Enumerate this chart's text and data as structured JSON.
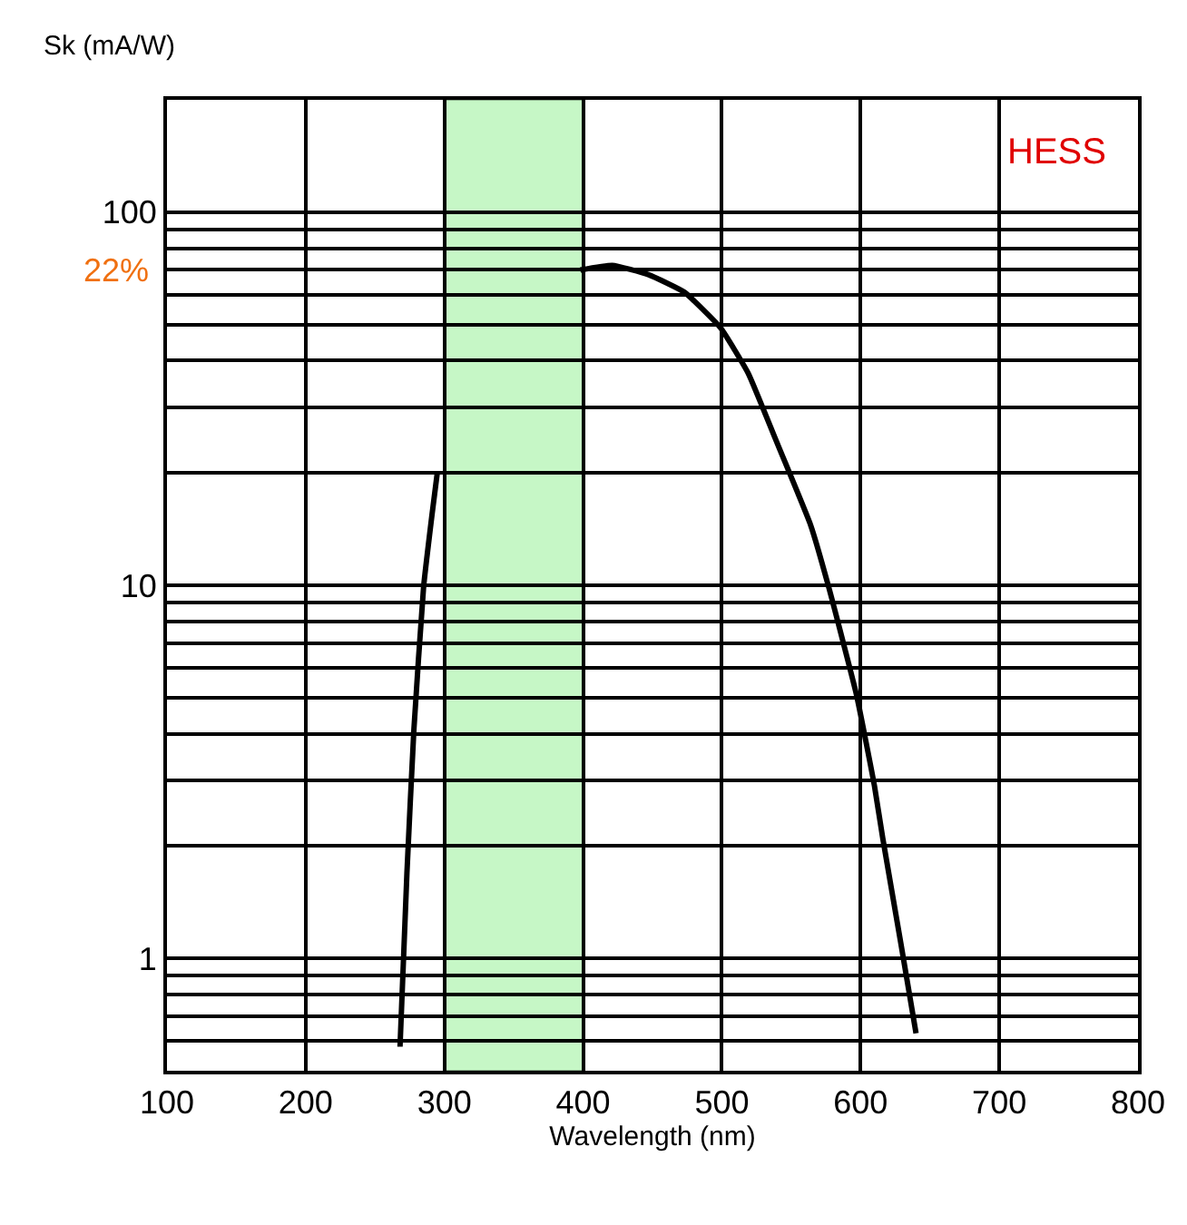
{
  "chart_data": {
    "type": "line",
    "ylabel": "Sk (mA/W)",
    "xlabel": "Wavelength (nm)",
    "log": "y",
    "grid": true,
    "marker": "none",
    "line_style": "solid",
    "x": [
      268,
      273,
      278,
      285,
      291,
      295,
      298,
      398,
      421,
      447,
      473,
      499,
      519,
      538,
      564,
      577,
      597,
      610,
      616,
      629,
      640
    ],
    "series": [
      {
        "color": "#000000",
        "values": [
          0.58,
          1.7,
          4.1,
          9.9,
          15.4,
          20.2,
          null,
          70,
          72,
          68,
          61,
          49,
          37,
          25,
          14.5,
          9.9,
          5.1,
          2.9,
          2.1,
          1.1,
          0.63
        ]
      }
    ],
    "xlim": [
      100,
      800
    ],
    "xticks": [
      100,
      200,
      300,
      400,
      500,
      600,
      700,
      800
    ],
    "ylim": [
      0.5,
      200
    ],
    "yticks": [
      {
        "value": 0.6,
        "label": null
      },
      {
        "value": 0.7,
        "label": null
      },
      {
        "value": 0.8,
        "label": null
      },
      {
        "value": 0.9,
        "label": null
      },
      1,
      {
        "value": 2,
        "label": null
      },
      {
        "value": 3,
        "label": null
      },
      {
        "value": 4,
        "label": null
      },
      {
        "value": 5,
        "label": null
      },
      {
        "value": 6,
        "label": null
      },
      {
        "value": 7,
        "label": null
      },
      {
        "value": 8,
        "label": null
      },
      {
        "value": 9,
        "label": null
      },
      10,
      {
        "value": 20,
        "label": null
      },
      {
        "value": 30,
        "label": null
      },
      {
        "value": 40,
        "label": null
      },
      {
        "value": 50,
        "label": null
      },
      {
        "value": 60,
        "label": null
      },
      {
        "value": 70,
        "label": null
      },
      {
        "value": 80,
        "label": null
      },
      {
        "value": 90,
        "label": null
      },
      100
    ],
    "bands": [
      {
        "axis": "x",
        "from": 300,
        "to": 400,
        "color": "#c6f7c6"
      }
    ],
    "annotations": [
      "HESS",
      "22%"
    ]
  }
}
